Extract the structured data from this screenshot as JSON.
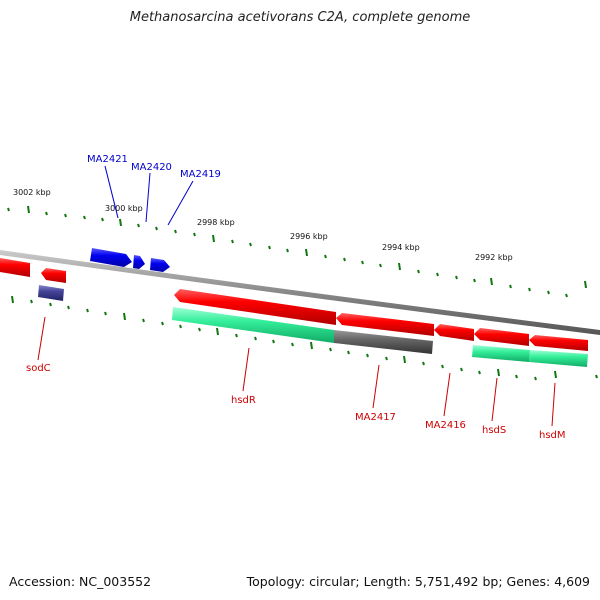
{
  "title": "Methanosarcina acetivorans C2A, complete genome",
  "footer": {
    "accession": "Accession: NC_003552",
    "summary": "Topology: circular; Length: 5,751,492 bp; Genes: 4,609"
  },
  "colors": {
    "forward_strand": "#0000ee",
    "reverse_strand": "#ee0000",
    "cds_shadow": "#22cc88",
    "other_feature": "#555555",
    "rna_feature": "#333388",
    "tick": "#117711",
    "backbone": "#888888"
  },
  "scale_labels": [
    "3002 kbp",
    "3000 kbp",
    "2998 kbp",
    "2996 kbp",
    "2994 kbp",
    "2992 kbp"
  ],
  "gene_labels": {
    "forward": [
      "MA2421",
      "MA2420",
      "MA2419"
    ],
    "reverse": [
      "sodC",
      "hsdR",
      "MA2417",
      "MA2416",
      "hsdS",
      "hsdM"
    ]
  }
}
